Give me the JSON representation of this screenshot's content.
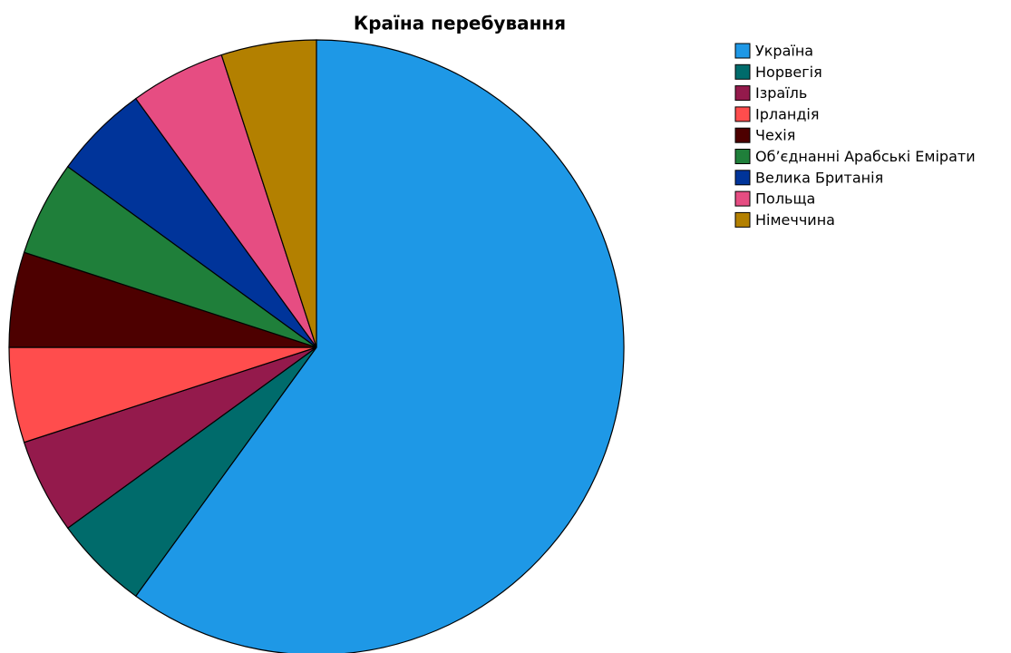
{
  "chart_data": {
    "type": "pie",
    "title": "Країна перебування",
    "categories": [
      "Україна",
      "Норвегія",
      "Ізраїль",
      "Ірландія",
      "Чехія",
      "Об’єднанні Арабські Емірати",
      "Велика Британія",
      "Польща",
      "Німеччина"
    ],
    "values": [
      60,
      5,
      5,
      5,
      5,
      5,
      5,
      5,
      5
    ],
    "colors": [
      "#1e98e6",
      "#006b6b",
      "#941a4c",
      "#ff4d4d",
      "#4d0000",
      "#1f7f3a",
      "#00349a",
      "#e64d82",
      "#b38000"
    ],
    "legend": "right"
  }
}
